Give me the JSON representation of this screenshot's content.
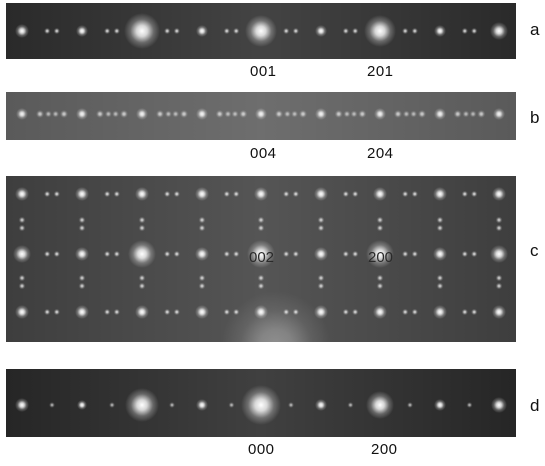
{
  "figure": {
    "panels": [
      {
        "letter": "a",
        "background": "#2a2a2a",
        "row_labels": [
          "001",
          "201"
        ]
      },
      {
        "letter": "b",
        "background": "#5a5a5a",
        "row_labels": [
          "004",
          "204"
        ]
      },
      {
        "letter": "c",
        "background": "#3e3e3e",
        "inset_labels": [
          "002",
          "200"
        ]
      },
      {
        "letter": "d",
        "background": "#262626",
        "row_labels": [
          "000",
          "200"
        ]
      }
    ],
    "colors": {
      "spot": "#ffffff",
      "label_text": "#111111",
      "inset_text": "#2a2a2a"
    }
  }
}
